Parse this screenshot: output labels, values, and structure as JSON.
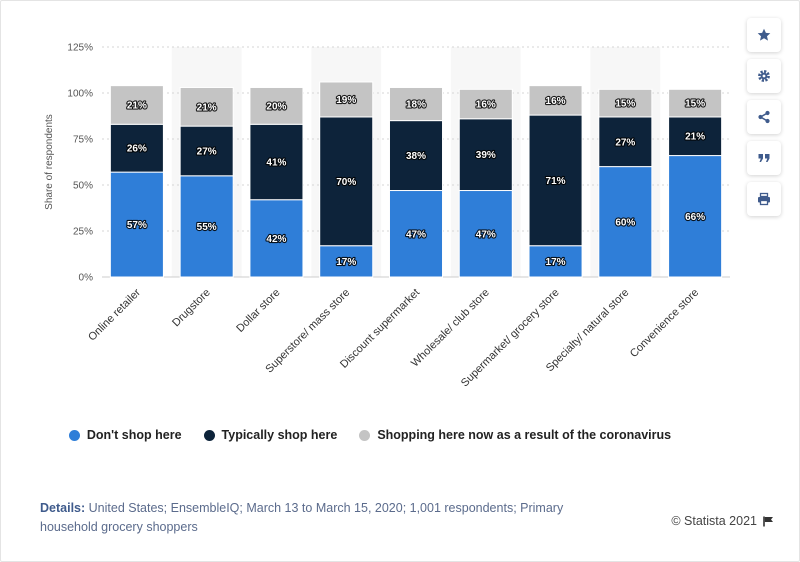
{
  "chart_data": {
    "type": "bar",
    "stacked": true,
    "categories": [
      "Online retailer",
      "Drugstore",
      "Dollar store",
      "Superstore/ mass store",
      "Discount supermarket",
      "Wholesale/ club store",
      "Supermarket/ grocery store",
      "Specialty/ natural store",
      "Convenience store"
    ],
    "series": [
      {
        "name": "Don't shop here",
        "color": "#2f7ed8",
        "values": [
          57,
          55,
          42,
          17,
          47,
          47,
          17,
          60,
          66
        ]
      },
      {
        "name": "Typically shop here",
        "color": "#0d233a",
        "values": [
          26,
          27,
          41,
          70,
          38,
          39,
          71,
          27,
          21
        ]
      },
      {
        "name": "Shopping here now as a result of the coronavirus",
        "color": "#c4c4c4",
        "values": [
          21,
          21,
          20,
          19,
          18,
          16,
          16,
          15,
          15
        ]
      }
    ],
    "value_suffix": "%",
    "ylabel": "Share of respondents",
    "ylim": [
      0,
      125
    ],
    "yticks": [
      "0%",
      "25%",
      "50%",
      "75%",
      "100%",
      "125%"
    ],
    "grid": true,
    "legend_position": "bottom"
  },
  "legend": {
    "items": [
      {
        "label": "Don't shop here",
        "color": "#2f7ed8"
      },
      {
        "label": "Typically shop here",
        "color": "#0d233a"
      },
      {
        "label": "Shopping here now as a result of the coronavirus",
        "color": "#c4c4c4"
      }
    ]
  },
  "footer": {
    "details_label": "Details:",
    "details_text": "United States; EnsembleIQ; March 13 to March 15, 2020; 1,001 respondents; Primary household grocery shoppers",
    "credit": "© Statista 2021"
  },
  "toolbar": {
    "icons": [
      "star-icon",
      "gear-icon",
      "share-icon",
      "quote-icon",
      "print-icon"
    ],
    "icon_color": "#3f5b8c"
  }
}
